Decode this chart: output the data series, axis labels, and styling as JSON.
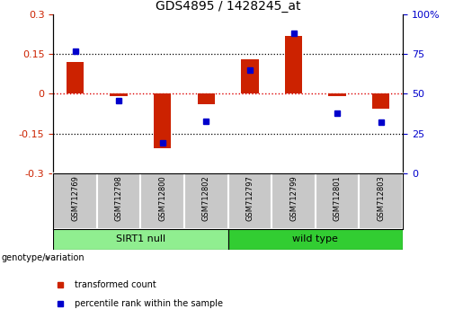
{
  "title": "GDS4895 / 1428245_at",
  "samples": [
    "GSM712769",
    "GSM712798",
    "GSM712800",
    "GSM712802",
    "GSM712797",
    "GSM712799",
    "GSM712801",
    "GSM712803"
  ],
  "red_bars": [
    0.12,
    -0.01,
    -0.205,
    -0.04,
    0.13,
    0.22,
    -0.01,
    -0.055
  ],
  "blue_dots": [
    77,
    46,
    19,
    33,
    65,
    88,
    38,
    32
  ],
  "groups": [
    {
      "label": "SIRT1 null",
      "color": "#90EE90",
      "indices": [
        0,
        1,
        2,
        3
      ]
    },
    {
      "label": "wild type",
      "color": "#32CD32",
      "indices": [
        4,
        5,
        6,
        7
      ]
    }
  ],
  "ylim_left": [
    -0.3,
    0.3
  ],
  "ylim_right": [
    0,
    100
  ],
  "yticks_left": [
    -0.3,
    -0.15,
    0,
    0.15,
    0.3
  ],
  "yticks_right": [
    0,
    25,
    50,
    75,
    100
  ],
  "ytick_labels_left": [
    "-0.3",
    "-0.15",
    "0",
    "0.15",
    "0.3"
  ],
  "ytick_labels_right": [
    "0",
    "25",
    "50",
    "75",
    "100%"
  ],
  "bar_color": "#CC2200",
  "dot_color": "#0000CC",
  "hline0_color": "#DD0000",
  "grid_hline_color": "black",
  "dotted_hlines": [
    -0.15,
    0.15
  ],
  "legend_red": "transformed count",
  "legend_blue": "percentile rank within the sample",
  "genotype_label": "genotype/variation",
  "bg_color": "#FFFFFF",
  "plot_bg_color": "#FFFFFF",
  "label_bg_color": "#C8C8C8",
  "bar_width": 0.4,
  "title_fontsize": 10,
  "tick_fontsize": 8,
  "label_fontsize": 7,
  "legend_fontsize": 7
}
